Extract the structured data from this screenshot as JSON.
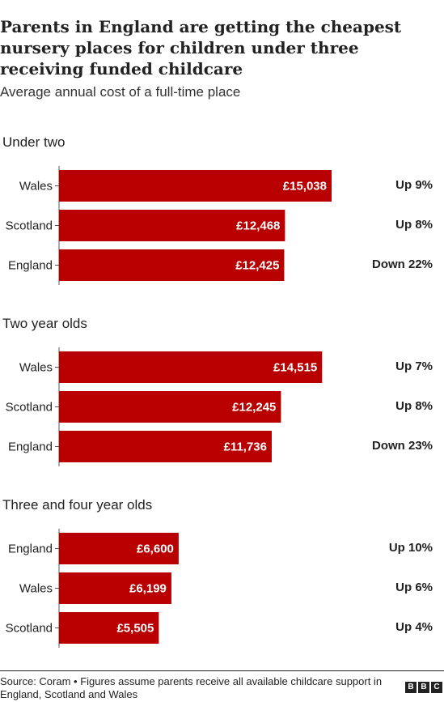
{
  "title": "Parents in England are getting the cheapest nursery places for children under three receiving funded childcare",
  "subtitle": "Average annual cost of a full-time place",
  "source": "Source: Coram • Figures assume parents receive all available childcare support in England, Scotland and Wales",
  "logo_letters": [
    "B",
    "B",
    "C"
  ],
  "colors": {
    "bar": "#b80000",
    "axis": "#555555"
  },
  "chart_data": [
    {
      "type": "bar",
      "orientation": "horizontal",
      "title": "Under two",
      "categories": [
        "Wales",
        "Scotland",
        "England"
      ],
      "values": [
        15038,
        12468,
        12425
      ],
      "value_labels": [
        "£15,038",
        "£12,468",
        "£12,425"
      ],
      "changes": [
        "Up 9%",
        "Up 8%",
        "Down 22%"
      ],
      "xlim": [
        0,
        20000
      ]
    },
    {
      "type": "bar",
      "orientation": "horizontal",
      "title": "Two year olds",
      "categories": [
        "Wales",
        "Scotland",
        "England"
      ],
      "values": [
        14515,
        12245,
        11736
      ],
      "value_labels": [
        "£14,515",
        "£12,245",
        "£11,736"
      ],
      "changes": [
        "Up 7%",
        "Up 8%",
        "Down 23%"
      ],
      "xlim": [
        0,
        20000
      ]
    },
    {
      "type": "bar",
      "orientation": "horizontal",
      "title": "Three and four year olds",
      "categories": [
        "England",
        "Wales",
        "Scotland"
      ],
      "values": [
        6600,
        6199,
        5505
      ],
      "value_labels": [
        "£6,600",
        "£6,199",
        "£5,505"
      ],
      "changes": [
        "Up 10%",
        "Up 6%",
        "Up 4%"
      ],
      "xlim": [
        0,
        20000
      ]
    }
  ]
}
